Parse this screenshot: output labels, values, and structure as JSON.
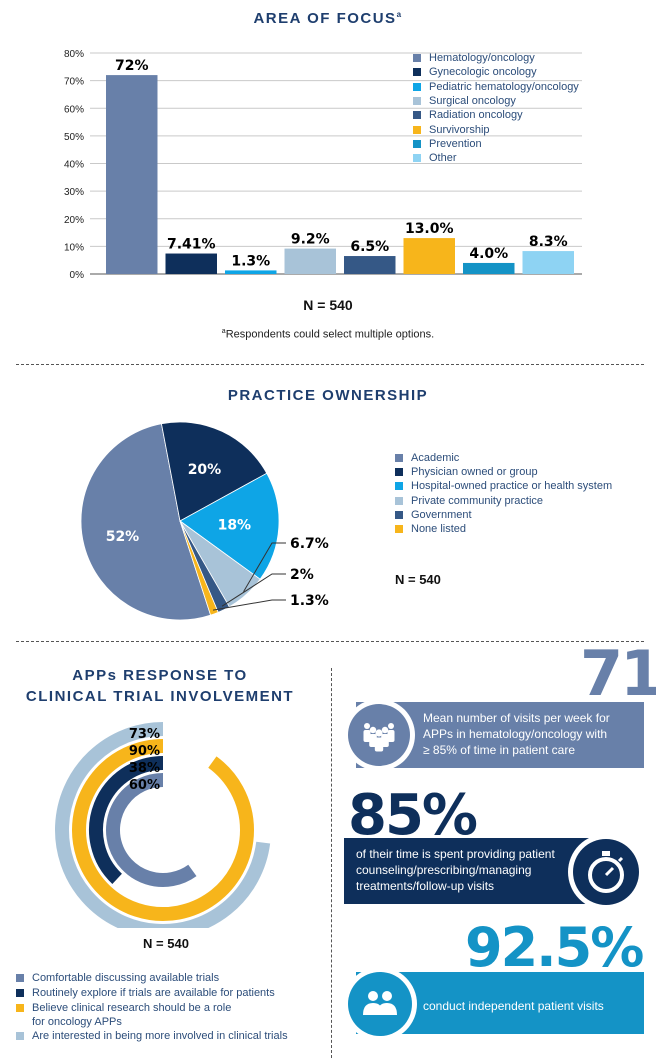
{
  "charts": {
    "focus": {
      "title": "AREA OF FOCUS",
      "title_sup": "a",
      "type": "bar",
      "categories": [
        "Hematology/oncology",
        "Gynecologic oncology",
        "Pediatric hematology/oncology",
        "Surgical oncology",
        "Radiation oncology",
        "Survivorship",
        "Prevention",
        "Other"
      ],
      "values": [
        72,
        7.41,
        1.3,
        9.2,
        6.5,
        13.0,
        4.0,
        8.3
      ],
      "value_labels": [
        "72%",
        "7.41%",
        "1.3%",
        "9.2%",
        "6.5%",
        "13.0%",
        "4.0%",
        "8.3%"
      ],
      "colors": [
        "#6880a9",
        "#0e2f5b",
        "#0ea5e6",
        "#a8c3d8",
        "#355886",
        "#f7b51b",
        "#1493c6",
        "#8ed3f3"
      ],
      "y_ticks": [
        "0%",
        "10%",
        "20%",
        "30%",
        "40%",
        "50%",
        "60%",
        "70%",
        "80%"
      ],
      "ylim": [
        0,
        80
      ],
      "n_label": "N = 540",
      "footnote_sup": "a",
      "footnote": "Respondents could select multiple options."
    },
    "ownership": {
      "title": "PRACTICE OWNERSHIP",
      "type": "pie",
      "labels": [
        "Academic",
        "Physician owned or group",
        "Hospital-owned practice or health system",
        "Private community practice",
        "Government",
        "None listed"
      ],
      "values": [
        52,
        20,
        18,
        6.7,
        2,
        1.3
      ],
      "value_labels": [
        "52%",
        "20%",
        "18%",
        "6.7%",
        "2%",
        "1.3%"
      ],
      "colors": [
        "#6880a9",
        "#0e2f5b",
        "#0ea5e6",
        "#a8c3d8",
        "#355886",
        "#f7b51b"
      ],
      "n_label": "N = 540"
    },
    "response": {
      "title_line1": "APPs RESPONSE TO",
      "title_line2": "CLINICAL TRIAL INVOLVEMENT",
      "type": "radial-bar",
      "labels": [
        "Comfortable discussing available trials",
        "Routinely explore if trials are available for patients",
        "Believe clinical research should be a role for oncology APPs",
        "Are interested in being more involved in clinical trials"
      ],
      "legend_line_a": "Believe clinical research should be a role",
      "legend_line_b": "for oncology APPs",
      "values": [
        60,
        38,
        90,
        73
      ],
      "value_labels": [
        "60%",
        "38%",
        "90%",
        "73%"
      ],
      "colors": [
        "#6880a9",
        "#0e2f5b",
        "#f7b51b",
        "#a8c3d8"
      ],
      "n_label": "N = 540"
    }
  },
  "stats": {
    "visits": {
      "number": "71",
      "line1": "Mean number of visits per week for",
      "line2": "APPs in hematology/oncology with",
      "line3": "≥ 85% of time in patient care",
      "icon": "people-group-icon"
    },
    "time": {
      "number": "85%",
      "line1": "of their time is spent providing patient",
      "line2": "counseling/prescribing/managing",
      "line3": "treatments/follow-up visits",
      "icon": "stopwatch-icon"
    },
    "independent": {
      "number": "92.5%",
      "line1": "conduct independent patient visits",
      "icon": "two-people-icon"
    }
  },
  "colors": {
    "navy": "#1e3e6e",
    "slate": "#6880a9",
    "dark": "#0e2f5b",
    "blue": "#1493c6"
  }
}
